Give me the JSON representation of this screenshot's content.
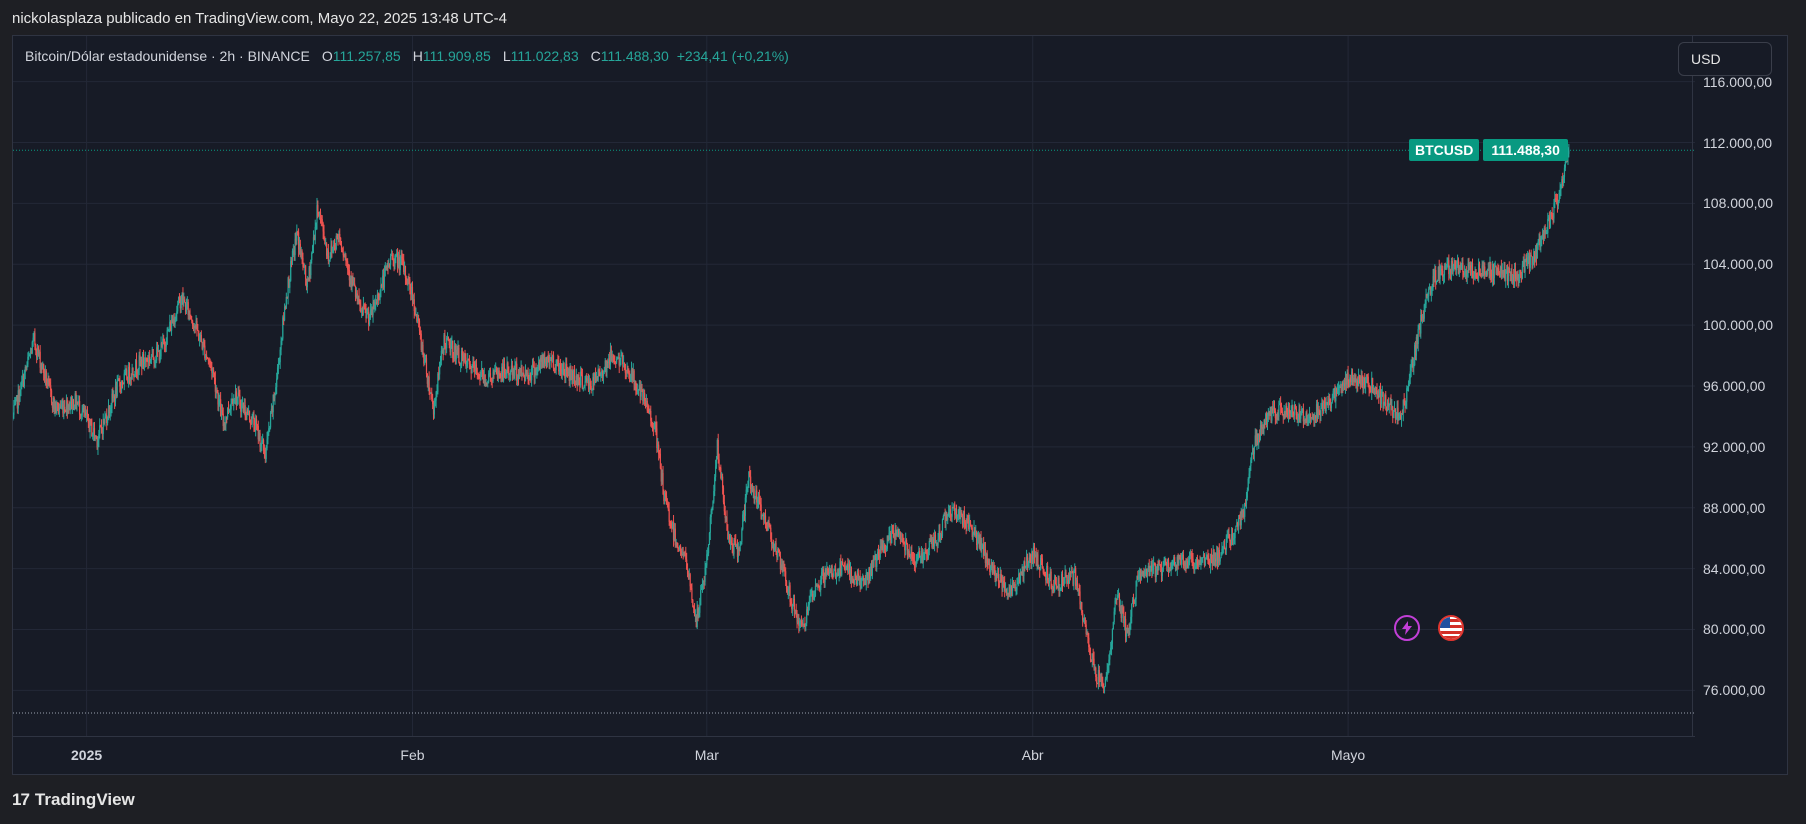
{
  "caption": "nickolasplaza publicado en TradingView.com, Mayo 22, 2025 13:48 UTC-4",
  "legend": {
    "symbol": "Bitcoin/Dólar estadounidense · 2h · BINANCE",
    "open_key": "O",
    "open": "111.257,85",
    "high_key": "H",
    "high": "111.909,85",
    "low_key": "L",
    "low": "111.022,83",
    "close_key": "C",
    "close": "111.488,30",
    "change": "+234,41 (+0,21%)"
  },
  "currency": "USD",
  "last_label": {
    "symbol": "BTCUSD",
    "price": "111.488,30"
  },
  "footer": {
    "brand": "TradingView",
    "logo": "17"
  },
  "colors": {
    "up": "#26a69a",
    "down": "#ef5350",
    "accent": "#089981"
  },
  "chart_data": {
    "type": "candlestick",
    "title": "Bitcoin/Dólar estadounidense · 2h · BINANCE",
    "series": [
      {
        "name": "BTCUSD"
      }
    ],
    "ylim": [
      73000,
      119000
    ],
    "y_ticks": [
      {
        "value": 76000,
        "label": "76.000,00"
      },
      {
        "value": 80000,
        "label": "80.000,00"
      },
      {
        "value": 84000,
        "label": "84.000,00"
      },
      {
        "value": 88000,
        "label": "88.000,00"
      },
      {
        "value": 92000,
        "label": "92.000,00"
      },
      {
        "value": 96000,
        "label": "96.000,00"
      },
      {
        "value": 100000,
        "label": "100.000,00"
      },
      {
        "value": 104000,
        "label": "104.000,00"
      },
      {
        "value": 108000,
        "label": "108.000,00"
      },
      {
        "value": 112000,
        "label": "112.000,00"
      },
      {
        "value": 116000,
        "label": "116.000,00"
      }
    ],
    "x_ticks": [
      {
        "label": "2025",
        "date": "2025-01-01",
        "bold": true
      },
      {
        "label": "Feb",
        "date": "2025-02-01"
      },
      {
        "label": "Mar",
        "date": "2025-03-01"
      },
      {
        "label": "Abr",
        "date": "2025-04-01"
      },
      {
        "label": "Mayo",
        "date": "2025-05-01"
      }
    ],
    "x_range": [
      "2024-12-25",
      "2025-06-03"
    ],
    "last_price": 111488.3,
    "range_low": 74508,
    "grid": true,
    "path": [
      [
        "2024-12-25",
        94000
      ],
      [
        "2024-12-27",
        99000
      ],
      [
        "2024-12-29",
        94500
      ],
      [
        "2024-12-31",
        95000
      ],
      [
        "2025-01-02",
        92500
      ],
      [
        "2025-01-04",
        96000
      ],
      [
        "2025-01-06",
        97500
      ],
      [
        "2025-01-08",
        98200
      ],
      [
        "2025-01-10",
        101800
      ],
      [
        "2025-01-11",
        100500
      ],
      [
        "2025-01-13",
        97000
      ],
      [
        "2025-01-14",
        93500
      ],
      [
        "2025-01-15",
        95500
      ],
      [
        "2025-01-17",
        93500
      ],
      [
        "2025-01-18",
        91500
      ],
      [
        "2025-01-19",
        96000
      ],
      [
        "2025-01-20",
        102000
      ],
      [
        "2025-01-21",
        106000
      ],
      [
        "2025-01-22",
        102500
      ],
      [
        "2025-01-23",
        107800
      ],
      [
        "2025-01-24",
        104500
      ],
      [
        "2025-01-25",
        106000
      ],
      [
        "2025-01-27",
        101000
      ],
      [
        "2025-01-28",
        100500
      ],
      [
        "2025-01-30",
        104500
      ],
      [
        "2025-01-31",
        104000
      ],
      [
        "2025-02-01",
        102000
      ],
      [
        "2025-02-03",
        94500
      ],
      [
        "2025-02-04",
        99000
      ],
      [
        "2025-02-06",
        97500
      ],
      [
        "2025-02-08",
        96500
      ],
      [
        "2025-02-10",
        97000
      ],
      [
        "2025-02-12",
        96800
      ],
      [
        "2025-02-14",
        97800
      ],
      [
        "2025-02-16",
        96800
      ],
      [
        "2025-02-18",
        96000
      ],
      [
        "2025-02-20",
        98000
      ],
      [
        "2025-02-21",
        97500
      ],
      [
        "2025-02-22",
        96500
      ],
      [
        "2025-02-24",
        93500
      ],
      [
        "2025-02-25",
        88500
      ],
      [
        "2025-02-26",
        86000
      ],
      [
        "2025-02-27",
        84500
      ],
      [
        "2025-02-28",
        80500
      ],
      [
        "2025-03-01",
        84500
      ],
      [
        "2025-03-02",
        92000
      ],
      [
        "2025-03-03",
        86000
      ],
      [
        "2025-03-04",
        85000
      ],
      [
        "2025-03-05",
        90000
      ],
      [
        "2025-03-06",
        88000
      ],
      [
        "2025-03-07",
        86500
      ],
      [
        "2025-03-09",
        82000
      ],
      [
        "2025-03-10",
        80000
      ],
      [
        "2025-03-11",
        82000
      ],
      [
        "2025-03-12",
        83500
      ],
      [
        "2025-03-14",
        84000
      ],
      [
        "2025-03-16",
        83000
      ],
      [
        "2025-03-17",
        84500
      ],
      [
        "2025-03-19",
        86500
      ],
      [
        "2025-03-21",
        84500
      ],
      [
        "2025-03-23",
        86000
      ],
      [
        "2025-03-24",
        88000
      ],
      [
        "2025-03-26",
        87000
      ],
      [
        "2025-03-28",
        84000
      ],
      [
        "2025-03-30",
        82500
      ],
      [
        "2025-04-01",
        85000
      ],
      [
        "2025-04-03",
        83000
      ],
      [
        "2025-04-05",
        83500
      ],
      [
        "2025-04-06",
        80000
      ],
      [
        "2025-04-07",
        77000
      ],
      [
        "2025-04-08",
        76500
      ],
      [
        "2025-04-09",
        82500
      ],
      [
        "2025-04-10",
        79500
      ],
      [
        "2025-04-11",
        83500
      ],
      [
        "2025-04-13",
        84000
      ],
      [
        "2025-04-15",
        84500
      ],
      [
        "2025-04-17",
        84500
      ],
      [
        "2025-04-19",
        85000
      ],
      [
        "2025-04-21",
        87500
      ],
      [
        "2025-04-22",
        92000
      ],
      [
        "2025-04-23",
        93800
      ],
      [
        "2025-04-25",
        94500
      ],
      [
        "2025-04-27",
        94000
      ],
      [
        "2025-04-29",
        94800
      ],
      [
        "2025-05-01",
        96500
      ],
      [
        "2025-05-03",
        96200
      ],
      [
        "2025-05-05",
        94500
      ],
      [
        "2025-05-06",
        94000
      ],
      [
        "2025-05-07",
        97000
      ],
      [
        "2025-05-08",
        100500
      ],
      [
        "2025-05-09",
        103000
      ],
      [
        "2025-05-11",
        104000
      ],
      [
        "2025-05-13",
        103500
      ],
      [
        "2025-05-15",
        103500
      ],
      [
        "2025-05-17",
        103200
      ],
      [
        "2025-05-18",
        104000
      ],
      [
        "2025-05-19",
        105000
      ],
      [
        "2025-05-20",
        106500
      ],
      [
        "2025-05-21",
        108500
      ],
      [
        "2025-05-22",
        111488
      ]
    ]
  }
}
